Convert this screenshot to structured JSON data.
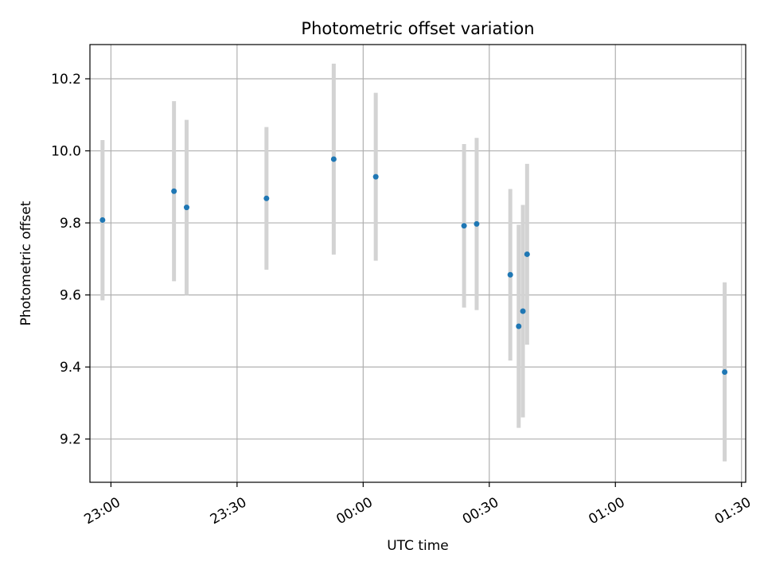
{
  "chart_data": {
    "type": "scatter",
    "title": "Photometric offset variation",
    "xlabel": "UTC time",
    "ylabel": "Photometric offset",
    "x_axis": {
      "kind": "time",
      "range": [
        "22:55",
        "01:31"
      ],
      "ticks": [
        "23:00",
        "23:30",
        "00:00",
        "00:30",
        "01:00",
        "01:30"
      ]
    },
    "y_axis": {
      "range": [
        9.08,
        10.295
      ],
      "ticks": [
        "9.2",
        "9.4",
        "9.6",
        "9.8",
        "10.0",
        "10.2"
      ]
    },
    "grid": true,
    "points": [
      {
        "time": "22:58",
        "y": 9.808,
        "ylow": 9.585,
        "yhigh": 10.03
      },
      {
        "time": "23:15",
        "y": 9.888,
        "ylow": 9.638,
        "yhigh": 10.138
      },
      {
        "time": "23:18",
        "y": 9.843,
        "ylow": 9.6,
        "yhigh": 10.086
      },
      {
        "time": "23:37",
        "y": 9.868,
        "ylow": 9.67,
        "yhigh": 10.066
      },
      {
        "time": "23:53",
        "y": 9.977,
        "ylow": 9.712,
        "yhigh": 10.242
      },
      {
        "time": "00:03",
        "y": 9.928,
        "ylow": 9.695,
        "yhigh": 10.161
      },
      {
        "time": "00:24",
        "y": 9.792,
        "ylow": 9.565,
        "yhigh": 10.019
      },
      {
        "time": "00:27",
        "y": 9.797,
        "ylow": 9.558,
        "yhigh": 10.036
      },
      {
        "time": "00:35",
        "y": 9.656,
        "ylow": 9.418,
        "yhigh": 9.894
      },
      {
        "time": "00:37",
        "y": 9.513,
        "ylow": 9.231,
        "yhigh": 9.795
      },
      {
        "time": "00:38",
        "y": 9.555,
        "ylow": 9.26,
        "yhigh": 9.85
      },
      {
        "time": "00:39",
        "y": 9.713,
        "ylow": 9.462,
        "yhigh": 9.964
      },
      {
        "time": "01:26",
        "y": 9.386,
        "ylow": 9.138,
        "yhigh": 9.635
      }
    ],
    "colors": {
      "point": "#1f77b4",
      "errorbar": "#d3d3d3",
      "grid": "#b0b0b0",
      "axes": "#000000"
    }
  }
}
